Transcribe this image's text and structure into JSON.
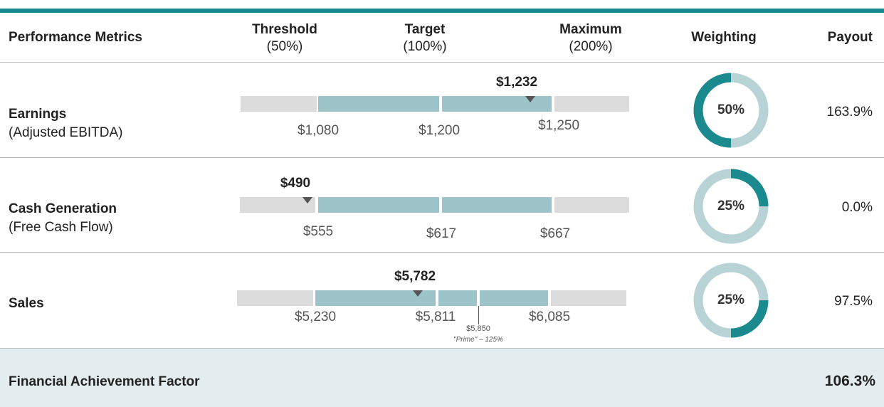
{
  "header": {
    "metric": "Performance Metrics",
    "threshold": {
      "name": "Threshold",
      "pct": "(50%)"
    },
    "target": {
      "name": "Target",
      "pct": "(100%)"
    },
    "maximum": {
      "name": "Maximum",
      "pct": "(200%)"
    },
    "weighting": "Weighting",
    "payout": "Payout"
  },
  "rows": [
    {
      "name": "Earnings",
      "subtitle": "(Adjusted EBITDA)",
      "actual": "$1,232",
      "threshold": "$1,080",
      "target": "$1,200",
      "maximum": "$1,250",
      "weighting": 50,
      "weighting_label": "50%",
      "payout": "163.9%"
    },
    {
      "name": "Cash Generation",
      "subtitle": "(Free Cash Flow)",
      "actual": "$490",
      "threshold": "$555",
      "target": "$617",
      "maximum": "$667",
      "weighting": 25,
      "weighting_label": "25%",
      "payout": "0.0%"
    },
    {
      "name": "Sales",
      "actual": "$5,782",
      "threshold": "$5,230",
      "target": "$5,811",
      "maximum": "$6,085",
      "prime": {
        "value": "$5,850",
        "label": "\"Prime\" – 125%"
      },
      "weighting": 25,
      "weighting_label": "25%",
      "payout": "97.5%"
    }
  ],
  "footer": {
    "label": "Financial Achievement Factor",
    "value": "106.3%"
  }
}
